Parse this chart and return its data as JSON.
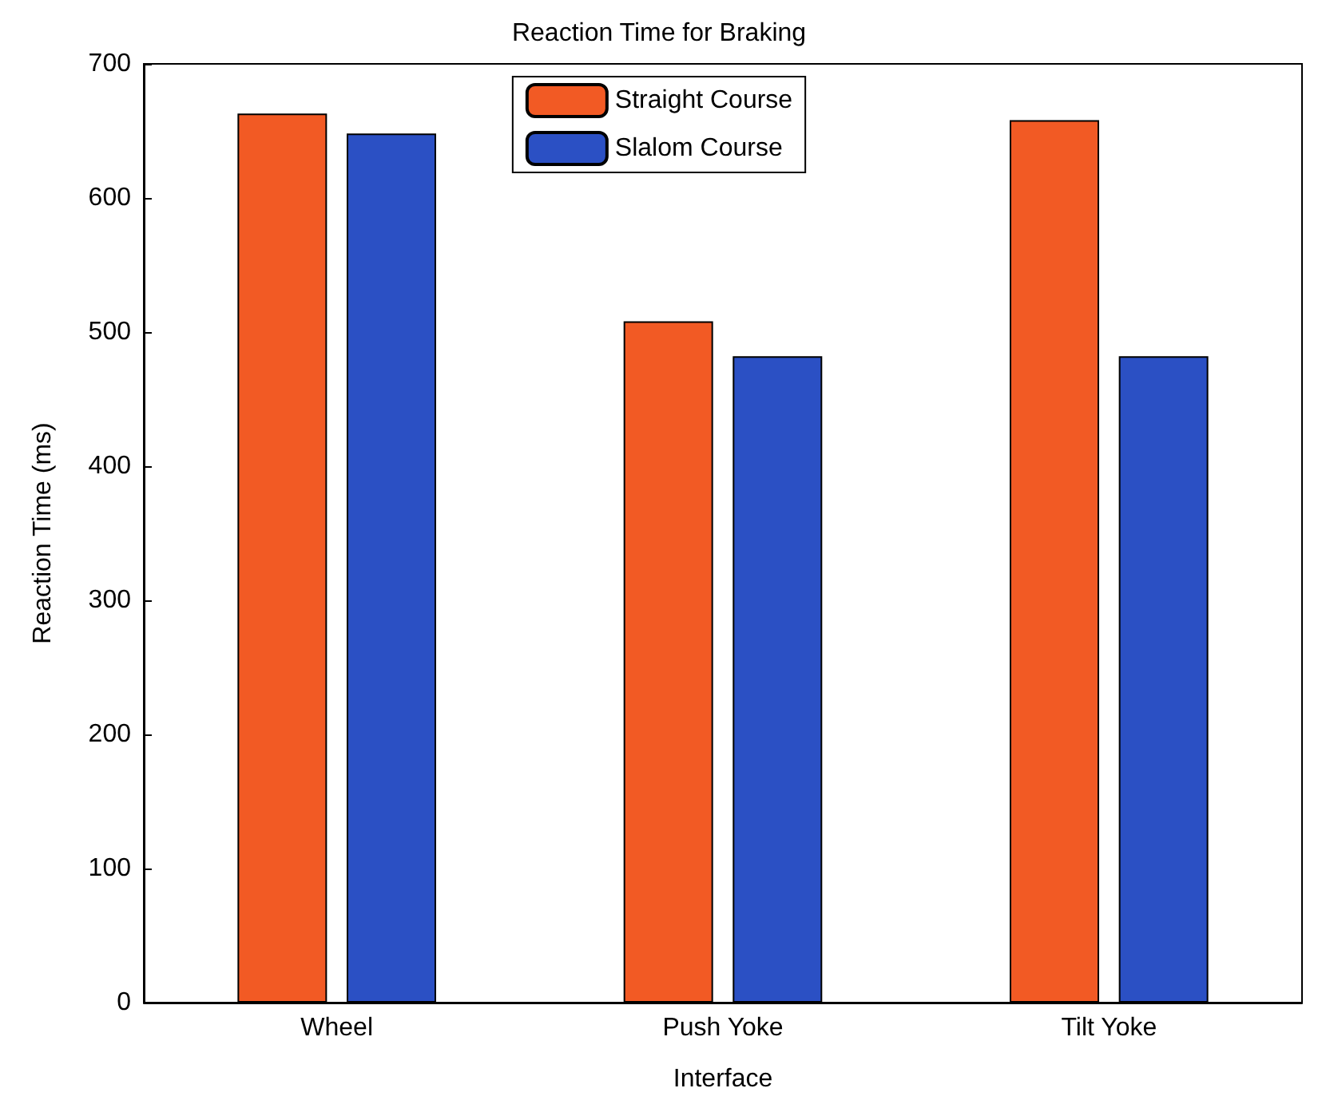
{
  "chart_data": {
    "type": "bar",
    "title": "Reaction Time for Braking",
    "xlabel": "Interface",
    "ylabel": "Reaction Time (ms)",
    "categories": [
      "Wheel",
      "Push Yoke",
      "Tilt Yoke"
    ],
    "series": [
      {
        "name": "Straight Course",
        "color": "#f25a24",
        "values": [
          663,
          508,
          658
        ]
      },
      {
        "name": "Slalom Course",
        "color": "#2b50c4",
        "values": [
          648,
          482,
          482
        ]
      }
    ],
    "ylim": [
      0,
      700
    ],
    "yticks": [
      0,
      100,
      200,
      300,
      400,
      500,
      600,
      700
    ],
    "grid": false,
    "legend": "top"
  }
}
